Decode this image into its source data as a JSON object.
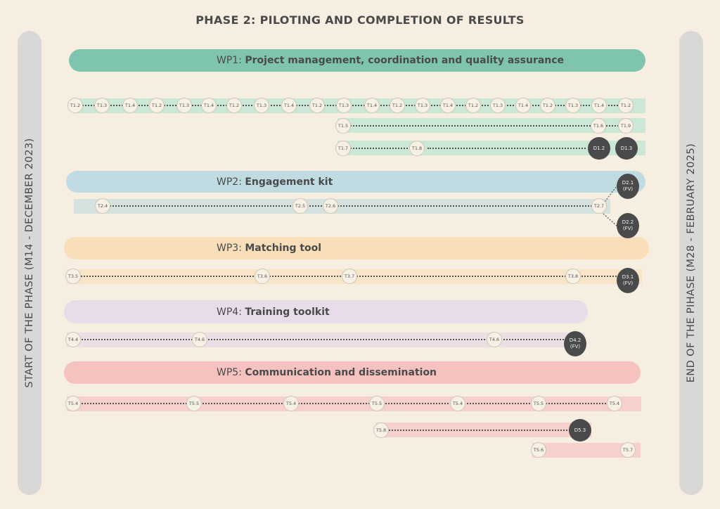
{
  "title": "PHASE 2: PILOTING AND COMPLETION OF RESULTS",
  "start_label": "START OF THE PHASE (M14 - DECEMBER 2023)",
  "end_label": "END OF THE   PIHASE (M28 - FEBRUARY 2025)",
  "wp1": {
    "prefix": "WP1: ",
    "name": "Project management, coordination and quality assurance"
  },
  "wp2": {
    "prefix": "WP2: ",
    "name": "Engagement kit"
  },
  "wp3": {
    "prefix": "WP3: ",
    "name": "Matching tool"
  },
  "wp4": {
    "prefix": "WP4: ",
    "name": "Training toolkit"
  },
  "wp5": {
    "prefix": "WP5: ",
    "name": "Communication and dissemination"
  },
  "colors": {
    "wp1_bar": "#7fc4ae",
    "wp1_band": "#cbe7d6",
    "wp2_bar": "#c0dce2",
    "wp2_band": "#d6e2df",
    "wp3_bar": "#f8dfb9",
    "wp3_band": "#f8e4c6",
    "wp4_bar": "#e9dcea",
    "wp4_band": "#ebdfe5",
    "wp5_bar": "#f5c2bf",
    "wp5_band": "#f6d0ca"
  },
  "nodes": {
    "r1": [
      "T1.2",
      "T1.3",
      "T1.4",
      "T1.2",
      "T1.3",
      "T1.4",
      "T1.2",
      "T1.3",
      "T1.4",
      "T1.2",
      "T1.3",
      "T1.4",
      "T1.2",
      "T1.3",
      "T1.4",
      "T1.2",
      "T1.3",
      "T1.4",
      "T1.2",
      "T1.3",
      "T1.4",
      "T1.2"
    ],
    "r2": [
      "T1.5",
      "T1.6",
      "T1.9"
    ],
    "r3": [
      "T1.7",
      "T1.8"
    ],
    "r3d": [
      {
        "id": "D1.2",
        "sub": ""
      },
      {
        "id": "D1.3",
        "sub": ""
      }
    ],
    "wp2": [
      "T2.4",
      "T2.5",
      "T2.6",
      "T2.7"
    ],
    "wp2d": [
      {
        "id": "D2.1",
        "sub": "(FV)"
      },
      {
        "id": "D2.2",
        "sub": "(FV)"
      }
    ],
    "wp3": [
      "T3.5",
      "T3.6",
      "T3.7",
      "T3.8"
    ],
    "wp3d": [
      {
        "id": "D3.1",
        "sub": "(FV)"
      }
    ],
    "wp4": [
      "T4.4",
      "T4.6",
      "T4.6"
    ],
    "wp4d": [
      {
        "id": "D4.2",
        "sub": "(FV)"
      }
    ],
    "wp5a": [
      "T5.4",
      "T5.5",
      "T5.4",
      "T5.5",
      "T5.4",
      "T5.5",
      "T5.4"
    ],
    "wp5b": [
      "T5.8"
    ],
    "wp5bd": [
      {
        "id": "D5.3",
        "sub": ""
      }
    ],
    "wp5c": [
      "T5.6",
      "T5.7"
    ]
  }
}
